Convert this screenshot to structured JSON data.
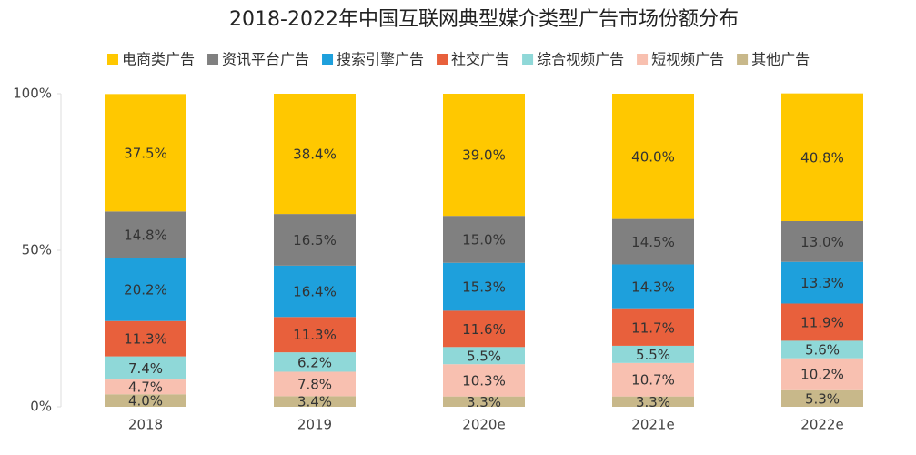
{
  "chart_data": {
    "type": "stacked_bar",
    "title": "2018-2022年中国互联网典型媒介类型广告市场份额分布",
    "categories": [
      "2018",
      "2019",
      "2020e",
      "2021e",
      "2022e"
    ],
    "series": [
      {
        "name": "电商类广告",
        "color": "#ffc800",
        "values": [
          37.5,
          38.4,
          39.0,
          40.0,
          40.8
        ],
        "value_labels": [
          "37.5%",
          "38.4%",
          "39.0%",
          "40.0%",
          "40.8%"
        ]
      },
      {
        "name": "资讯平台广告",
        "color": "#808080",
        "values": [
          14.8,
          16.5,
          15.0,
          14.5,
          13.0
        ],
        "value_labels": [
          "14.8%",
          "16.5%",
          "15.0%",
          "14.5%",
          "13.0%"
        ]
      },
      {
        "name": "搜索引擎广告",
        "color": "#1ea0dc",
        "values": [
          20.2,
          16.4,
          15.3,
          14.3,
          13.3
        ],
        "value_labels": [
          "20.2%",
          "16.4%",
          "15.3%",
          "14.3%",
          "13.3%"
        ]
      },
      {
        "name": "社交广告",
        "color": "#e8603c",
        "values": [
          11.3,
          11.3,
          11.6,
          11.7,
          11.9
        ],
        "value_labels": [
          "11.3%",
          "11.3%",
          "11.6%",
          "11.7%",
          "11.9%"
        ]
      },
      {
        "name": "综合视频广告",
        "color": "#8fd8d8",
        "values": [
          7.4,
          6.2,
          5.5,
          5.5,
          5.6
        ],
        "value_labels": [
          "7.4%",
          "6.2%",
          "5.5%",
          "5.5%",
          "5.6%"
        ]
      },
      {
        "name": "短视频广告",
        "color": "#f8c0b0",
        "values": [
          4.7,
          7.8,
          10.3,
          10.7,
          10.2
        ],
        "value_labels": [
          "4.7%",
          "7.8%",
          "10.3%",
          "10.7%",
          "10.2%"
        ]
      },
      {
        "name": "其他广告",
        "color": "#c8b88a",
        "values": [
          4.0,
          3.4,
          3.3,
          3.3,
          5.3
        ],
        "value_labels": [
          "4.0%",
          "3.4%",
          "3.3%",
          "3.3%",
          "5.3%"
        ]
      }
    ],
    "ylim": [
      0,
      100
    ],
    "yticks": [
      {
        "value": 0,
        "label": "0%"
      },
      {
        "value": 50,
        "label": "50%"
      },
      {
        "value": 100,
        "label": "100%"
      }
    ],
    "grid": false
  }
}
